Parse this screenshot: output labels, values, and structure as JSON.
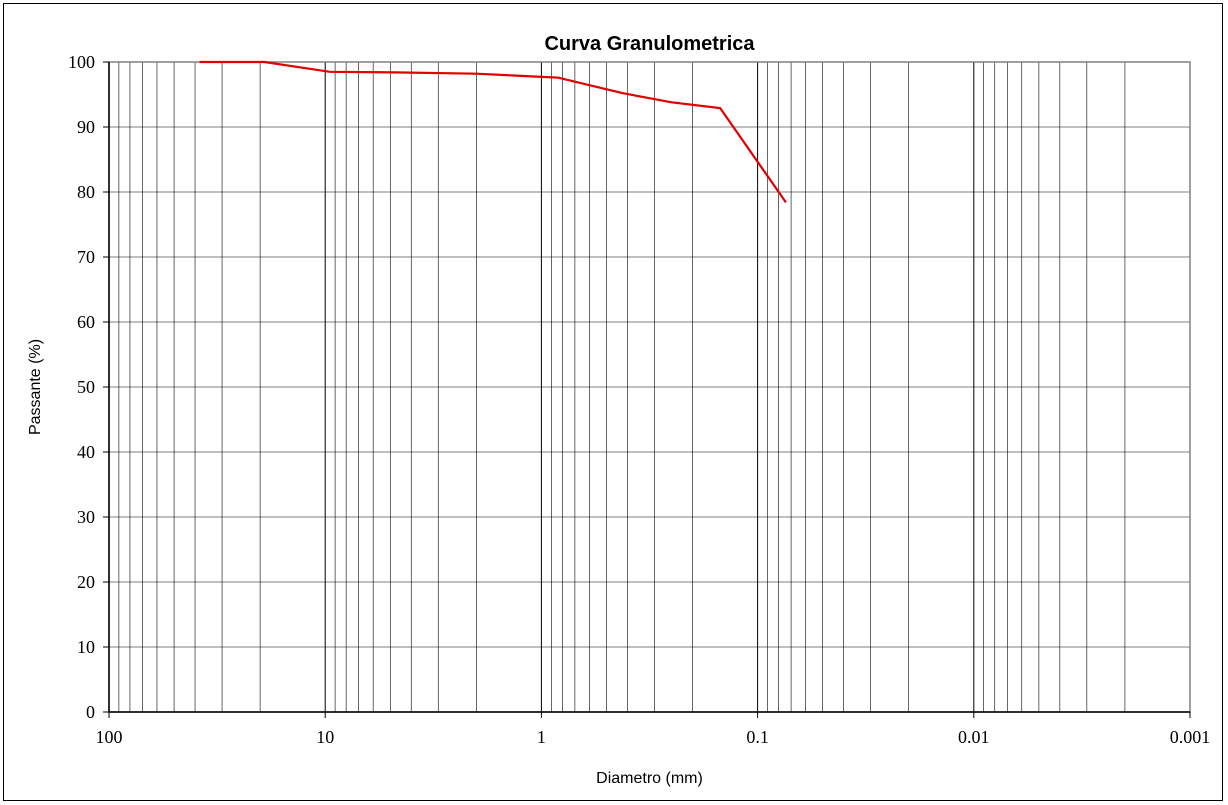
{
  "chart_data": {
    "type": "line",
    "title": "Curva Granulometrica",
    "xlabel": "Diametro (mm)",
    "ylabel": "Passante (%)",
    "x_scale": "log",
    "x_reversed": true,
    "xlim": [
      100,
      0.001
    ],
    "ylim": [
      0,
      100
    ],
    "x_ticks": [
      100,
      10,
      1,
      0.1,
      0.01,
      0.001
    ],
    "x_tick_labels": [
      "100",
      "10",
      "1",
      "0.1",
      "0.01",
      "0.001"
    ],
    "y_ticks": [
      0,
      10,
      20,
      30,
      40,
      50,
      60,
      70,
      80,
      90,
      100
    ],
    "y_tick_labels": [
      "0",
      "10",
      "20",
      "30",
      "40",
      "50",
      "60",
      "70",
      "80",
      "90",
      "100"
    ],
    "grid": true,
    "series": [
      {
        "color": "#e00000",
        "x": [
          38.1,
          19.1,
          9.52,
          4.76,
          2.0,
          0.84,
          0.42,
          0.25,
          0.149,
          0.074
        ],
        "y": [
          100,
          100,
          98.5,
          98.4,
          98.2,
          97.6,
          95.2,
          93.8,
          92.9,
          78.4
        ]
      }
    ]
  }
}
